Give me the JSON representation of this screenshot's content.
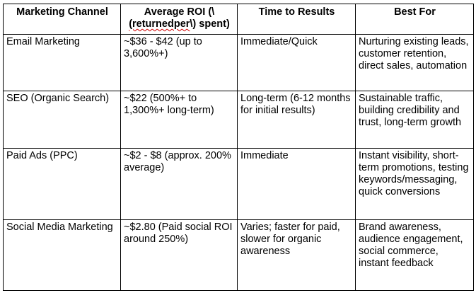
{
  "table": {
    "headers": {
      "channel": "Marketing Channel",
      "roi_part1": "Average ROI (\\",
      "roi_spell": "(returnedper",
      "roi_part2": "\\) spent)",
      "time": "Time to Results",
      "best": "Best For"
    },
    "rows": [
      {
        "channel": "Email Marketing",
        "roi": "~$36 - $42 (up to 3,600%+)",
        "time": "Immediate/Quick",
        "best": "Nurturing existing leads, customer retention, direct sales, automation"
      },
      {
        "channel": "SEO (Organic Search)",
        "roi": "~$22 (500%+ to 1,300%+ long-term)",
        "time": "Long-term (6-12 months for initial results)",
        "best": "Sustainable traffic, building credibility and trust, long-term growth"
      },
      {
        "channel": "Paid Ads (PPC)",
        "roi": "~$2 - $8 (approx. 200% average)",
        "time": "Immediate",
        "best": "Instant visibility, short-term promotions, testing keywords/messaging, quick conversions"
      },
      {
        "channel": "Social Media Marketing",
        "roi": "~$2.80 (Paid social ROI around 250%)",
        "time": "Varies; faster for paid, slower for organic awareness",
        "best": "Brand awareness, audience engagement, social commerce, instant feedback"
      }
    ]
  },
  "colors": {
    "border": "#000000",
    "text": "#000000",
    "spellcheck_underline": "#d00000"
  }
}
